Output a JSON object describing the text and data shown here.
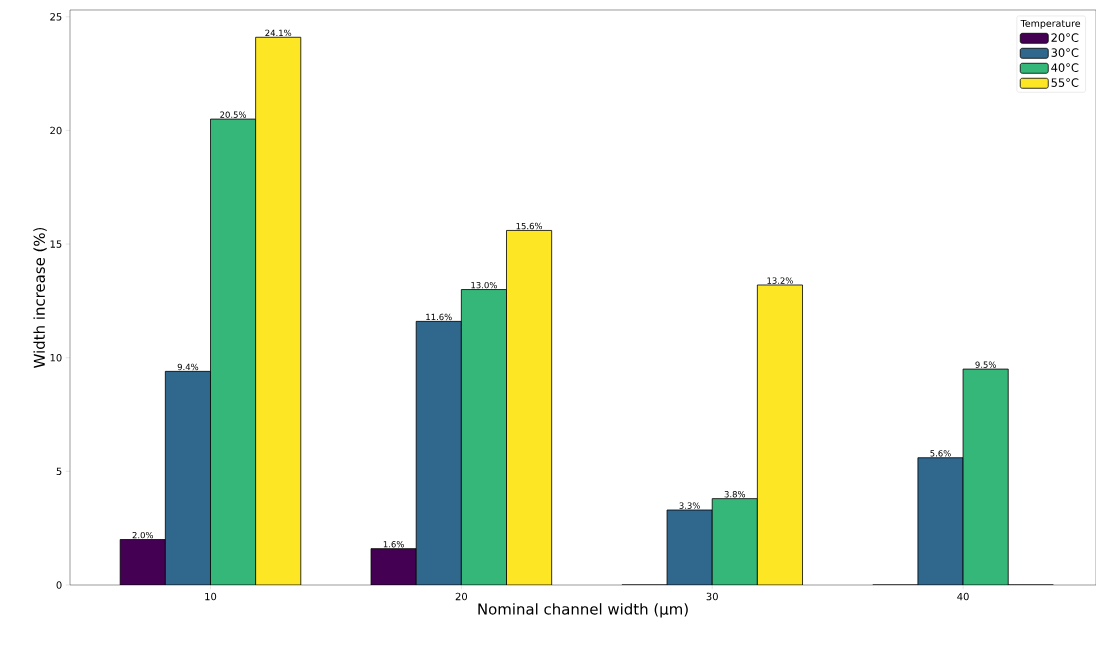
{
  "chart_data": {
    "type": "bar",
    "xlabel": "Nominal channel width (μm)",
    "ylabel": "Width increase (%)",
    "legend_title": "Temperature",
    "legend": "top right",
    "categories": [
      "10",
      "20",
      "30",
      "40"
    ],
    "ylim": [
      0,
      25.3
    ],
    "yticks": [
      0,
      5,
      10,
      15,
      20,
      25
    ],
    "series": [
      {
        "name": "20°C",
        "color": "#440154",
        "values": [
          2.0,
          1.6,
          0,
          0
        ],
        "value_labels": [
          "2.0%",
          "1.6%",
          null,
          null
        ]
      },
      {
        "name": "30°C",
        "color": "#30678d",
        "values": [
          9.4,
          11.6,
          3.3,
          5.6
        ],
        "value_labels": [
          "9.4%",
          "11.6%",
          "3.3%",
          "5.6%"
        ]
      },
      {
        "name": "40°C",
        "color": "#35b779",
        "values": [
          20.5,
          13.0,
          3.8,
          9.5
        ],
        "value_labels": [
          "20.5%",
          "13.0%",
          "3.8%",
          "9.5%"
        ]
      },
      {
        "name": "55°C",
        "color": "#fde725",
        "values": [
          24.1,
          15.6,
          13.2,
          0
        ],
        "value_labels": [
          "24.1%",
          "15.6%",
          "13.2%",
          null
        ]
      }
    ]
  }
}
